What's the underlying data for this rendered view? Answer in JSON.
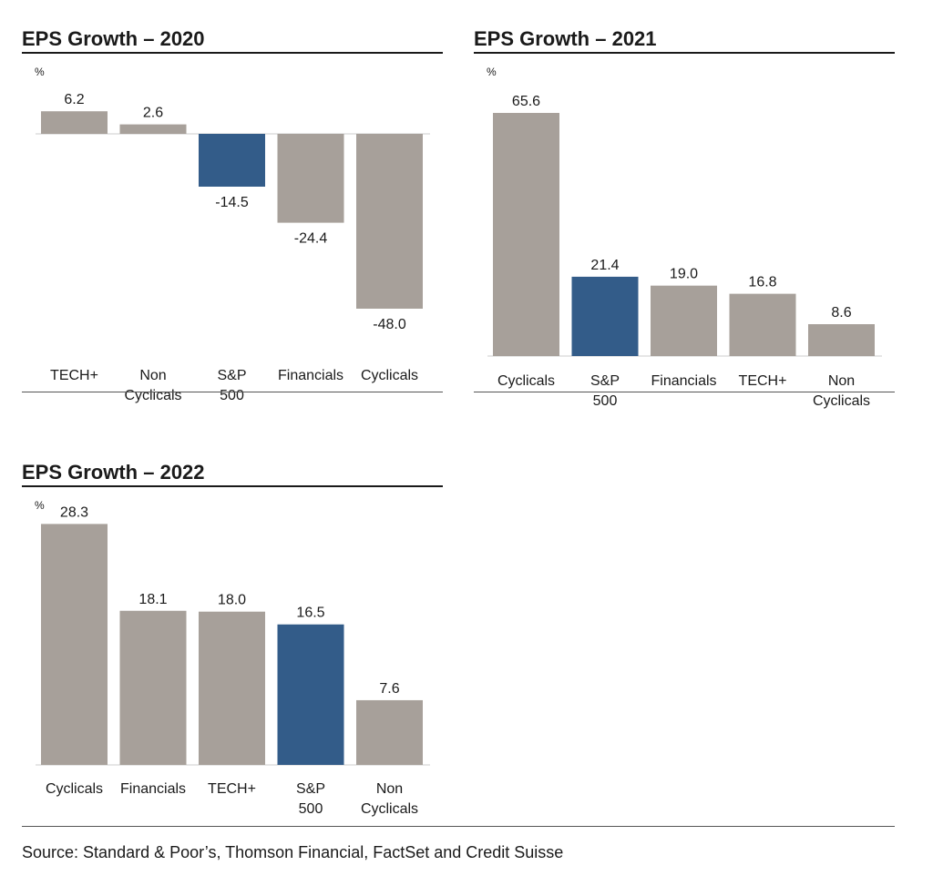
{
  "colors": {
    "bar": "#a7a09a",
    "highlight": "#335c89",
    "text": "#1a1a1a",
    "baseline": "#cccccc"
  },
  "chart_data": [
    {
      "type": "bar",
      "title": "EPS Growth – 2020",
      "unit": "%",
      "categories": [
        "TECH+",
        "Non Cyclicals",
        "S&P 500",
        "Financials",
        "Cyclicals"
      ],
      "labels": [
        "6.2",
        "2.6",
        "-14.5",
        "-24.4",
        "-48.0"
      ],
      "values": [
        6.2,
        2.6,
        -14.5,
        -24.4,
        -48.0
      ],
      "highlight": "S&P 500",
      "ylim": [
        -48.0,
        6.2
      ]
    },
    {
      "type": "bar",
      "title": "EPS Growth – 2021",
      "unit": "%",
      "categories": [
        "Cyclicals",
        "S&P 500",
        "Financials",
        "TECH+",
        "Non Cyclicals"
      ],
      "labels": [
        "65.6",
        "21.4",
        "19.0",
        "16.8",
        "8.6"
      ],
      "values": [
        65.6,
        21.4,
        19.0,
        16.8,
        8.6
      ],
      "highlight": "S&P 500",
      "ylim": [
        0,
        65.6
      ]
    },
    {
      "type": "bar",
      "title": "EPS Growth – 2022",
      "unit": "%",
      "categories": [
        "Cyclicals",
        "Financials",
        "TECH+",
        "S&P 500",
        "Non Cyclicals"
      ],
      "labels": [
        "28.3",
        "18.1",
        "18.0",
        "16.5",
        "7.6"
      ],
      "values": [
        28.3,
        18.1,
        18.0,
        16.5,
        7.6
      ],
      "highlight": "S&P 500",
      "ylim": [
        0,
        28.3
      ]
    }
  ],
  "source": "Source: Standard & Poor’s, Thomson Financial, FactSet and Credit Suisse"
}
